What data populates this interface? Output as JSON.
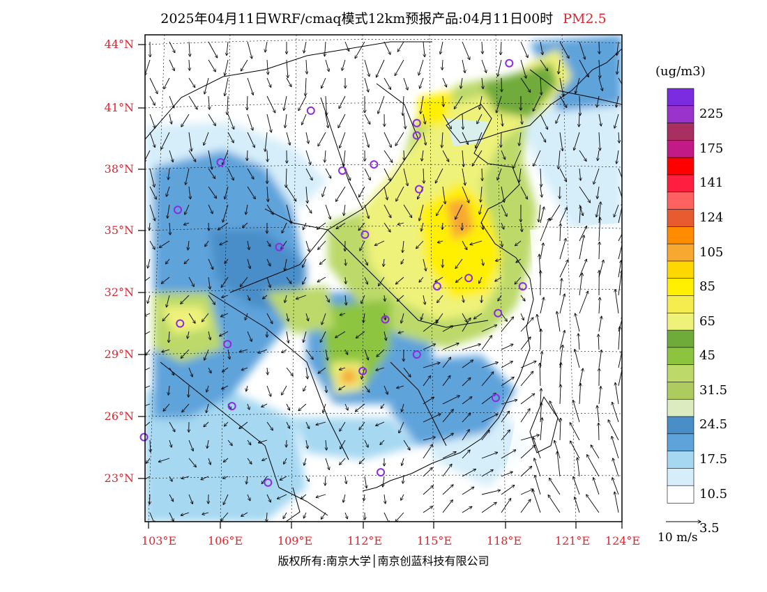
{
  "title": {
    "main": "2025年04月11日WRF/cmaq模式12km预报产品:04月11日00时",
    "pollutant": "PM2.5"
  },
  "lat_labels": [
    "44°N",
    "41°N",
    "38°N",
    "35°N",
    "32°N",
    "29°N",
    "26°N",
    "23°N"
  ],
  "lon_labels": [
    "103°E",
    "106°E",
    "109°E",
    "112°E",
    "115°E",
    "118°E",
    "121°E",
    "124°E"
  ],
  "colorbar": {
    "units": "(ug/m3)",
    "labels": [
      "225",
      "175",
      "141",
      "124",
      "105",
      "85",
      "65",
      "45",
      "31.5",
      "24.5",
      "17.5",
      "10.5",
      "3.5"
    ],
    "colors": [
      "#7b2be0",
      "#9a33cc",
      "#a82f5f",
      "#c21a86",
      "#ff0000",
      "#ff1e40",
      "#ff6060",
      "#e85a30",
      "#ff8c00",
      "#f7a830",
      "#ffd700",
      "#ffef00",
      "#f5ec50",
      "#eef27a",
      "#6fab3a",
      "#8dc43f",
      "#bcd96a",
      "#aecb60",
      "#dcebc0",
      "#4a8ec8",
      "#5fa3db",
      "#a6d8f2",
      "#d6eefa",
      "#ffffff"
    ]
  },
  "wind_scale": {
    "label": "10 m/s"
  },
  "copyright": "版权所有:南京大学│南京创蓝科技有限公司",
  "stations": [
    {
      "lon": 119.0,
      "lat": 43.1
    },
    {
      "lon": 110.2,
      "lat": 40.8
    },
    {
      "lon": 114.9,
      "lat": 40.2
    },
    {
      "lon": 114.9,
      "lat": 39.6
    },
    {
      "lon": 111.6,
      "lat": 37.9
    },
    {
      "lon": 113.0,
      "lat": 38.2
    },
    {
      "lon": 115.0,
      "lat": 37.0
    },
    {
      "lon": 106.2,
      "lat": 38.3
    },
    {
      "lon": 104.3,
      "lat": 36.0
    },
    {
      "lon": 112.6,
      "lat": 34.8
    },
    {
      "lon": 108.8,
      "lat": 34.2
    },
    {
      "lon": 117.2,
      "lat": 32.7
    },
    {
      "lon": 115.8,
      "lat": 32.3
    },
    {
      "lon": 119.6,
      "lat": 32.3
    },
    {
      "lon": 118.5,
      "lat": 31.0
    },
    {
      "lon": 113.5,
      "lat": 30.7
    },
    {
      "lon": 104.4,
      "lat": 30.5
    },
    {
      "lon": 106.5,
      "lat": 29.5
    },
    {
      "lon": 114.9,
      "lat": 29.0
    },
    {
      "lon": 112.5,
      "lat": 28.2
    },
    {
      "lon": 118.4,
      "lat": 26.9
    },
    {
      "lon": 106.7,
      "lat": 26.5
    },
    {
      "lon": 102.8,
      "lat": 25.0
    },
    {
      "lon": 108.3,
      "lat": 22.8
    },
    {
      "lon": 113.3,
      "lat": 23.3
    }
  ]
}
